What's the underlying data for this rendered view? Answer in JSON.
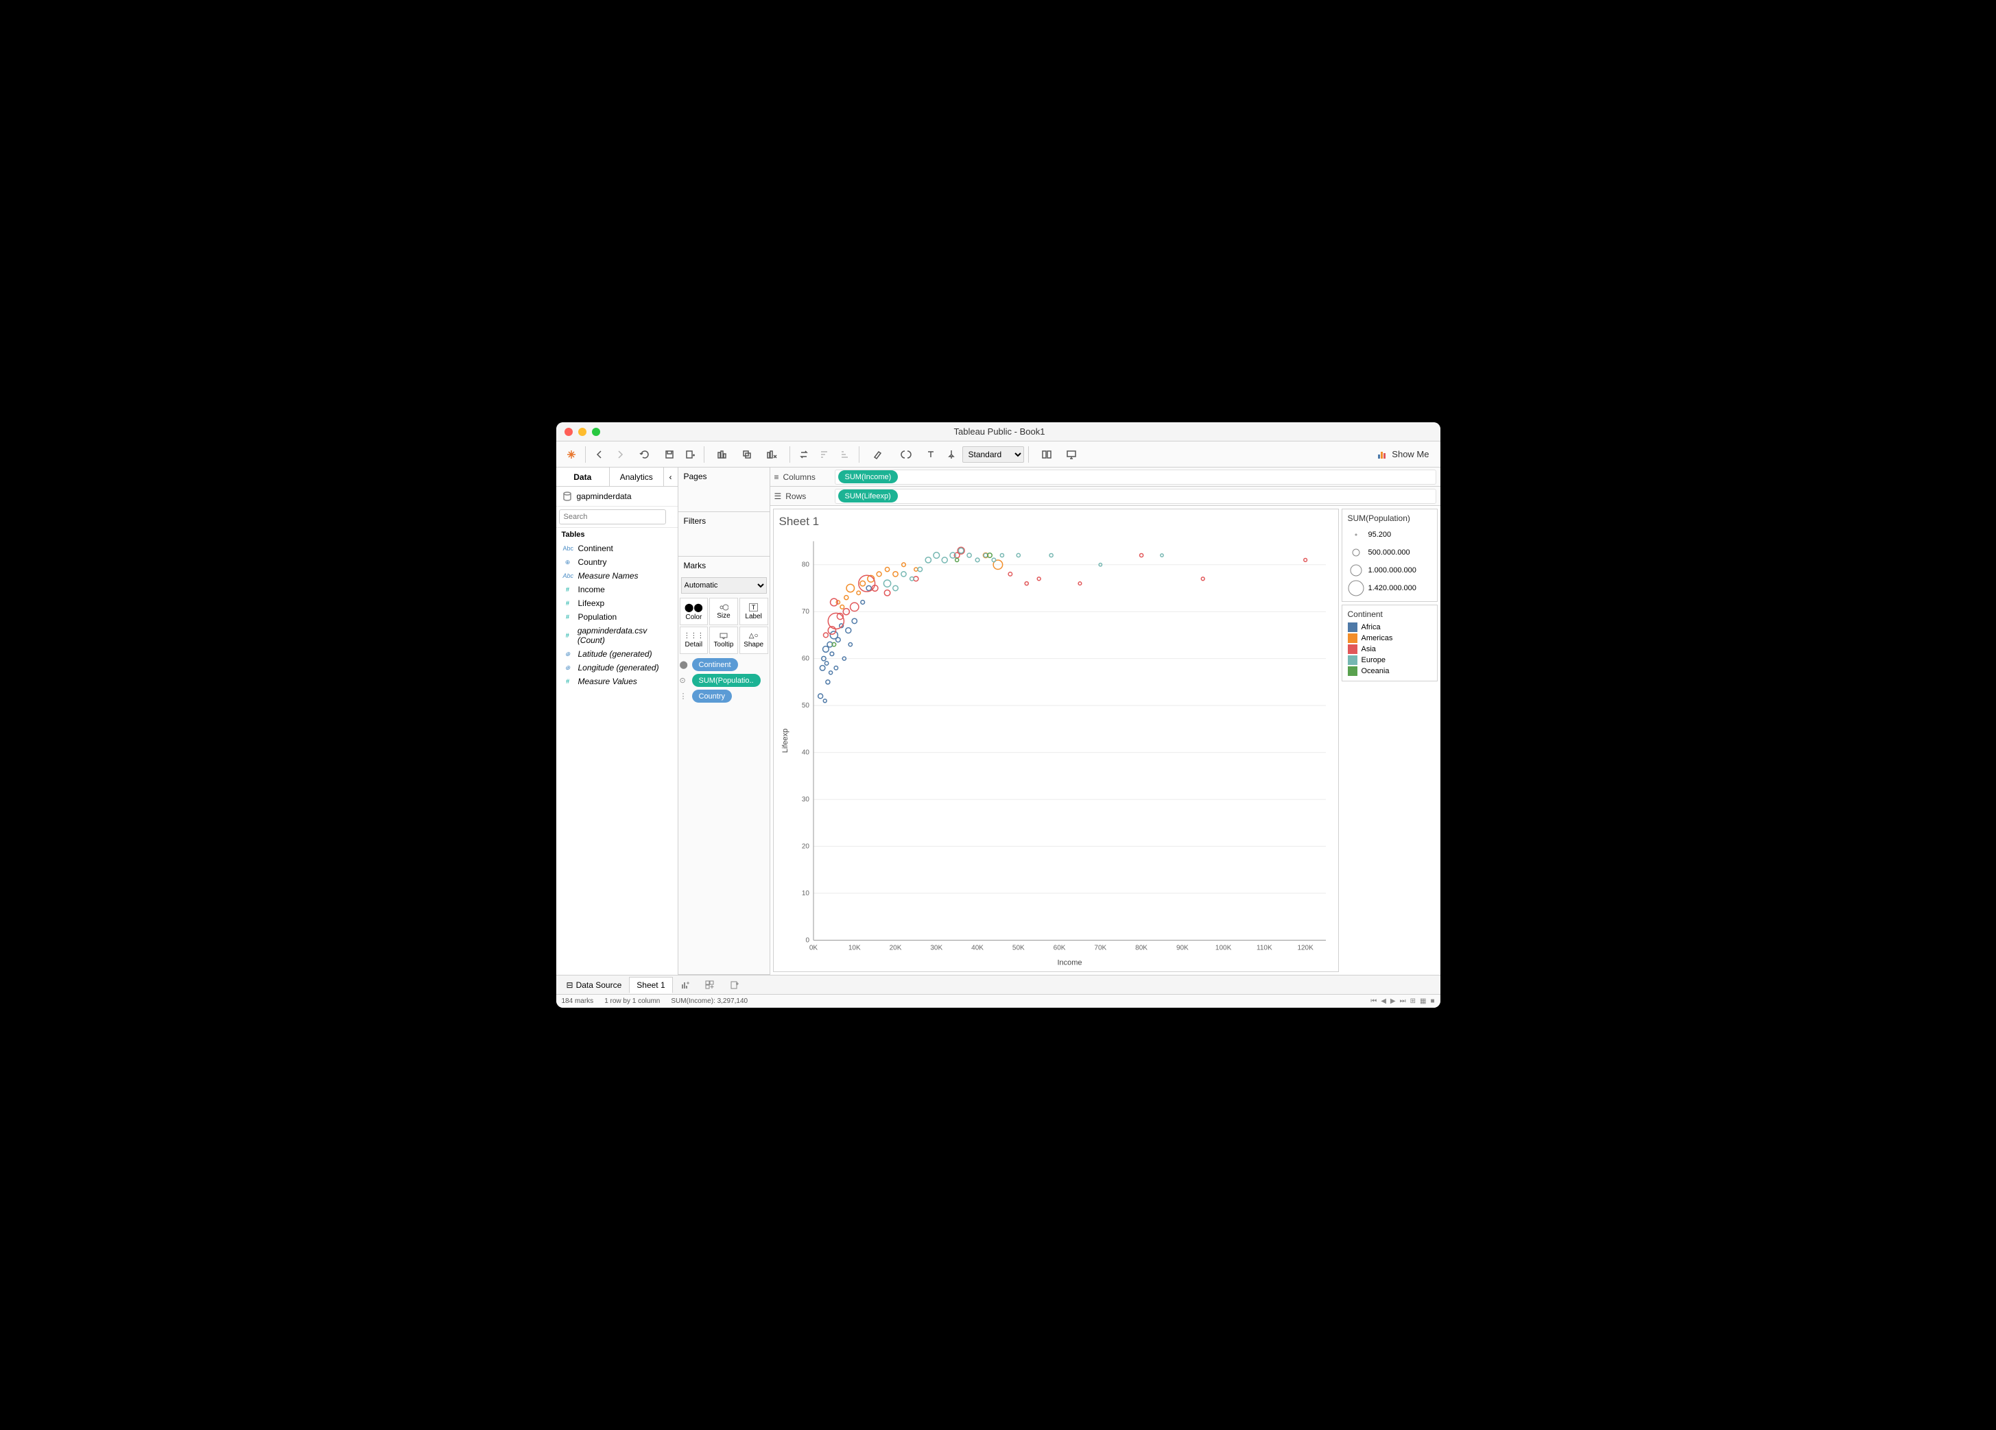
{
  "window": {
    "title": "Tableau Public - Book1"
  },
  "toolbar": {
    "fit": "Standard",
    "showme": "Show Me"
  },
  "left": {
    "tabs": {
      "data": "Data",
      "analytics": "Analytics"
    },
    "datasource": "gapminderdata",
    "search_placeholder": "Search",
    "section": "Tables",
    "fields": [
      {
        "type": "Abc",
        "cls": "dim",
        "label": "Continent"
      },
      {
        "type": "globe",
        "cls": "dim",
        "label": "Country"
      },
      {
        "type": "Abc",
        "cls": "dim",
        "label": "Measure Names",
        "italic": true
      },
      {
        "type": "#",
        "cls": "measure",
        "label": "Income"
      },
      {
        "type": "#",
        "cls": "measure",
        "label": "Lifeexp"
      },
      {
        "type": "#",
        "cls": "measure",
        "label": "Population"
      },
      {
        "type": "#",
        "cls": "measure",
        "label": "gapminderdata.csv (Count)",
        "italic": true
      },
      {
        "type": "globe",
        "cls": "measure",
        "label": "Latitude (generated)",
        "italic": true
      },
      {
        "type": "globe",
        "cls": "measure",
        "label": "Longitude (generated)",
        "italic": true
      },
      {
        "type": "#",
        "cls": "measure",
        "label": "Measure Values",
        "italic": true
      }
    ]
  },
  "mid": {
    "pages": "Pages",
    "filters": "Filters",
    "marks": "Marks",
    "mark_type": "Automatic",
    "cells": {
      "color": "Color",
      "size": "Size",
      "label": "Label",
      "detail": "Detail",
      "tooltip": "Tooltip",
      "shape": "Shape"
    },
    "pills": [
      {
        "cls": "blue",
        "label": "Continent",
        "icon": "color"
      },
      {
        "cls": "teal",
        "label": "SUM(Populatio..",
        "icon": "size"
      },
      {
        "cls": "blue",
        "label": "Country",
        "icon": "detail"
      }
    ]
  },
  "shelves": {
    "columns_label": "Columns",
    "rows_label": "Rows",
    "columns_pill": "SUM(Income)",
    "rows_pill": "SUM(Lifeexp)"
  },
  "viz": {
    "title": "Sheet 1",
    "xlabel": "Income",
    "ylabel": "Lifeexp",
    "xlim": [
      0,
      125000
    ],
    "ylim": [
      0,
      85
    ],
    "xticks": [
      0,
      10000,
      20000,
      30000,
      40000,
      50000,
      60000,
      70000,
      80000,
      90000,
      100000,
      110000,
      120000
    ],
    "xtick_labels": [
      "0K",
      "10K",
      "20K",
      "30K",
      "40K",
      "50K",
      "60K",
      "70K",
      "80K",
      "90K",
      "100K",
      "110K",
      "120K"
    ],
    "yticks": [
      0,
      10,
      20,
      30,
      40,
      50,
      60,
      70,
      80
    ],
    "ytick_labels": [
      "0",
      "10",
      "20",
      "30",
      "40",
      "50",
      "60",
      "70",
      "80"
    ],
    "label_fontsize": 11,
    "tick_fontsize": 10,
    "background_color": "#ffffff",
    "grid_color": "#ebebeb",
    "continents": {
      "Africa": "#4e79a7",
      "Americas": "#f28e2b",
      "Asia": "#e15759",
      "Europe": "#76b7b2",
      "Oceania": "#59a14f"
    },
    "size_scale": [
      95200,
      1420000000
    ],
    "radius_range": [
      2,
      12
    ],
    "points": [
      {
        "x": 1700,
        "y": 52,
        "p": 30000000,
        "c": "Africa"
      },
      {
        "x": 2200,
        "y": 58,
        "p": 45000000,
        "c": "Africa"
      },
      {
        "x": 2500,
        "y": 60,
        "p": 20000000,
        "c": "Africa"
      },
      {
        "x": 3000,
        "y": 62,
        "p": 80000000,
        "c": "Africa"
      },
      {
        "x": 3500,
        "y": 55,
        "p": 15000000,
        "c": "Africa"
      },
      {
        "x": 4000,
        "y": 63,
        "p": 50000000,
        "c": "Africa"
      },
      {
        "x": 4500,
        "y": 61,
        "p": 10000000,
        "c": "Africa"
      },
      {
        "x": 5000,
        "y": 65,
        "p": 180000000,
        "c": "Africa"
      },
      {
        "x": 5500,
        "y": 58,
        "p": 8000000,
        "c": "Africa"
      },
      {
        "x": 6000,
        "y": 64,
        "p": 25000000,
        "c": "Africa"
      },
      {
        "x": 6800,
        "y": 67,
        "p": 12000000,
        "c": "Africa"
      },
      {
        "x": 7500,
        "y": 60,
        "p": 5000000,
        "c": "Africa"
      },
      {
        "x": 8500,
        "y": 66,
        "p": 55000000,
        "c": "Africa"
      },
      {
        "x": 10000,
        "y": 68,
        "p": 40000000,
        "c": "Africa"
      },
      {
        "x": 12000,
        "y": 72,
        "p": 10000000,
        "c": "Africa"
      },
      {
        "x": 13500,
        "y": 75,
        "p": 35000000,
        "c": "Africa"
      },
      {
        "x": 2800,
        "y": 51,
        "p": 3000000,
        "c": "Africa"
      },
      {
        "x": 3200,
        "y": 59,
        "p": 7000000,
        "c": "Africa"
      },
      {
        "x": 4200,
        "y": 57,
        "p": 4000000,
        "c": "Africa"
      },
      {
        "x": 9000,
        "y": 63,
        "p": 6000000,
        "c": "Africa"
      },
      {
        "x": 9000,
        "y": 75,
        "p": 200000000,
        "c": "Americas"
      },
      {
        "x": 12000,
        "y": 76,
        "p": 45000000,
        "c": "Americas"
      },
      {
        "x": 14000,
        "y": 77,
        "p": 120000000,
        "c": "Americas"
      },
      {
        "x": 16000,
        "y": 78,
        "p": 30000000,
        "c": "Americas"
      },
      {
        "x": 18000,
        "y": 79,
        "p": 18000000,
        "c": "Americas"
      },
      {
        "x": 20000,
        "y": 78,
        "p": 40000000,
        "c": "Americas"
      },
      {
        "x": 22000,
        "y": 80,
        "p": 10000000,
        "c": "Americas"
      },
      {
        "x": 25000,
        "y": 79,
        "p": 5000000,
        "c": "Americas"
      },
      {
        "x": 45000,
        "y": 80,
        "p": 320000000,
        "c": "Americas"
      },
      {
        "x": 42000,
        "y": 82,
        "p": 36000000,
        "c": "Americas"
      },
      {
        "x": 8000,
        "y": 73,
        "p": 15000000,
        "c": "Americas"
      },
      {
        "x": 11000,
        "y": 74,
        "p": 8000000,
        "c": "Americas"
      },
      {
        "x": 7000,
        "y": 71,
        "p": 10000000,
        "c": "Americas"
      },
      {
        "x": 6000,
        "y": 72,
        "p": 6000000,
        "c": "Americas"
      },
      {
        "x": 5500,
        "y": 68,
        "p": 1300000000,
        "c": "Asia"
      },
      {
        "x": 13000,
        "y": 76,
        "p": 1400000000,
        "c": "Asia"
      },
      {
        "x": 10000,
        "y": 71,
        "p": 250000000,
        "c": "Asia"
      },
      {
        "x": 4500,
        "y": 66,
        "p": 190000000,
        "c": "Asia"
      },
      {
        "x": 5000,
        "y": 72,
        "p": 160000000,
        "c": "Asia"
      },
      {
        "x": 36000,
        "y": 83,
        "p": 125000000,
        "c": "Asia"
      },
      {
        "x": 35000,
        "y": 82,
        "p": 50000000,
        "c": "Asia"
      },
      {
        "x": 8000,
        "y": 70,
        "p": 95000000,
        "c": "Asia"
      },
      {
        "x": 15000,
        "y": 75,
        "p": 80000000,
        "c": "Asia"
      },
      {
        "x": 25000,
        "y": 77,
        "p": 30000000,
        "c": "Asia"
      },
      {
        "x": 48000,
        "y": 78,
        "p": 8000000,
        "c": "Asia"
      },
      {
        "x": 55000,
        "y": 77,
        "p": 3000000,
        "c": "Asia"
      },
      {
        "x": 80000,
        "y": 82,
        "p": 5000000,
        "c": "Asia"
      },
      {
        "x": 95000,
        "y": 77,
        "p": 2500000,
        "c": "Asia"
      },
      {
        "x": 120000,
        "y": 81,
        "p": 2000000,
        "c": "Asia"
      },
      {
        "x": 65000,
        "y": 76,
        "p": 1500000,
        "c": "Asia"
      },
      {
        "x": 3000,
        "y": 65,
        "p": 30000000,
        "c": "Asia"
      },
      {
        "x": 6500,
        "y": 69,
        "p": 90000000,
        "c": "Asia"
      },
      {
        "x": 18000,
        "y": 74,
        "p": 70000000,
        "c": "Asia"
      },
      {
        "x": 52000,
        "y": 76,
        "p": 4000000,
        "c": "Asia"
      },
      {
        "x": 28000,
        "y": 81,
        "p": 65000000,
        "c": "Europe"
      },
      {
        "x": 30000,
        "y": 82,
        "p": 80000000,
        "c": "Europe"
      },
      {
        "x": 32000,
        "y": 81,
        "p": 60000000,
        "c": "Europe"
      },
      {
        "x": 34000,
        "y": 82,
        "p": 65000000,
        "c": "Europe"
      },
      {
        "x": 36000,
        "y": 83,
        "p": 45000000,
        "c": "Europe"
      },
      {
        "x": 38000,
        "y": 82,
        "p": 17000000,
        "c": "Europe"
      },
      {
        "x": 40000,
        "y": 81,
        "p": 10000000,
        "c": "Europe"
      },
      {
        "x": 42000,
        "y": 82,
        "p": 9000000,
        "c": "Europe"
      },
      {
        "x": 44000,
        "y": 81,
        "p": 8000000,
        "c": "Europe"
      },
      {
        "x": 46000,
        "y": 82,
        "p": 5000000,
        "c": "Europe"
      },
      {
        "x": 50000,
        "y": 82,
        "p": 5500000,
        "c": "Europe"
      },
      {
        "x": 58000,
        "y": 82,
        "p": 5000000,
        "c": "Europe"
      },
      {
        "x": 70000,
        "y": 80,
        "p": 600000,
        "c": "Europe"
      },
      {
        "x": 22000,
        "y": 78,
        "p": 38000000,
        "c": "Europe"
      },
      {
        "x": 24000,
        "y": 77,
        "p": 10000000,
        "c": "Europe"
      },
      {
        "x": 26000,
        "y": 79,
        "p": 20000000,
        "c": "Europe"
      },
      {
        "x": 18000,
        "y": 76,
        "p": 140000000,
        "c": "Europe"
      },
      {
        "x": 20000,
        "y": 75,
        "p": 45000000,
        "c": "Europe"
      },
      {
        "x": 85000,
        "y": 82,
        "p": 500000,
        "c": "Europe"
      },
      {
        "x": 43000,
        "y": 82,
        "p": 24000000,
        "c": "Oceania"
      },
      {
        "x": 35000,
        "y": 81,
        "p": 4500000,
        "c": "Oceania"
      },
      {
        "x": 5000,
        "y": 63,
        "p": 8000000,
        "c": "Oceania"
      }
    ]
  },
  "legends": {
    "size_title": "SUM(Population)",
    "size_values": [
      "95.200",
      "500.000.000",
      "1.000.000.000",
      "1.420.000.000"
    ],
    "size_radii": [
      1,
      5,
      8,
      11
    ],
    "color_title": "Continent",
    "colors": [
      {
        "label": "Africa",
        "hex": "#4e79a7"
      },
      {
        "label": "Americas",
        "hex": "#f28e2b"
      },
      {
        "label": "Asia",
        "hex": "#e15759"
      },
      {
        "label": "Europe",
        "hex": "#76b7b2"
      },
      {
        "label": "Oceania",
        "hex": "#59a14f"
      }
    ]
  },
  "bottom": {
    "datasource": "Data Source",
    "sheet": "Sheet 1"
  },
  "status": {
    "marks": "184 marks",
    "layout": "1 row by 1 column",
    "sum": "SUM(Income): 3,297,140"
  }
}
